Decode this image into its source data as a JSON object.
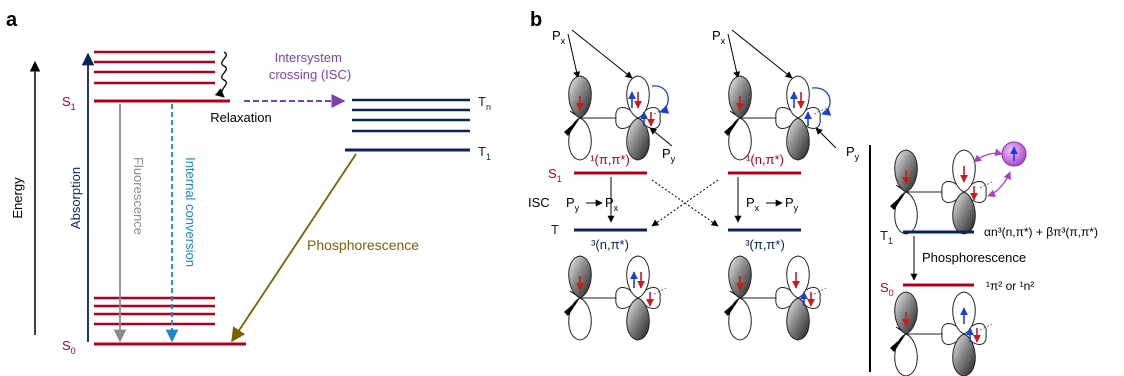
{
  "panel_a": {
    "label": "a",
    "energy_label": "Energy",
    "absorption_label": "Absorption",
    "fluorescence_label": "Fluorescence",
    "internal_conversion_label": "Internal conversion",
    "relaxation_label": "Relaxation",
    "isc_label_line1": "Intersystem",
    "isc_label_line2": "crossing (ISC)",
    "phosphorescence_label": "Phosphorescence",
    "s1": {
      "base": "S",
      "sub": "1"
    },
    "s0": {
      "base": "S",
      "sub": "0"
    },
    "tn": {
      "base": "T",
      "sub": "n"
    },
    "t1": {
      "base": "T",
      "sub": "1"
    }
  },
  "panel_b": {
    "label": "b",
    "px": {
      "base": "P",
      "sub": "x"
    },
    "py": {
      "base": "P",
      "sub": "y"
    },
    "s1": {
      "base": "S",
      "sub": "1"
    },
    "t": "T",
    "t1": {
      "base": "T",
      "sub": "1"
    },
    "s0": {
      "base": "S",
      "sub": "0"
    },
    "isc_label": "ISC",
    "phosphorescence_label": "Phosphorescence",
    "mixed_state_text": "αn³(n,π*) + βπ³(π,π*)",
    "ground_state_text": "¹π² or ¹n²",
    "state_s1_pi": "¹(π,π*)",
    "state_s1_n": "¹(n,π*)",
    "state_t_n": "³(n,π*)",
    "state_t_pi": "³(π,π*)"
  },
  "colors": {
    "singlet_red": "#b0001e",
    "triplet_navy": "#0b2357",
    "isc_purple": "#7e3fb0",
    "fluorescence_gray": "#8a8a8a",
    "internal_conversion_blue": "#1f86c8",
    "phosphorescence_olive": "#7a6200",
    "spin_up_blue": "#1a3fd8",
    "spin_down_red": "#d01818",
    "radical_purple": "#a940c8"
  }
}
